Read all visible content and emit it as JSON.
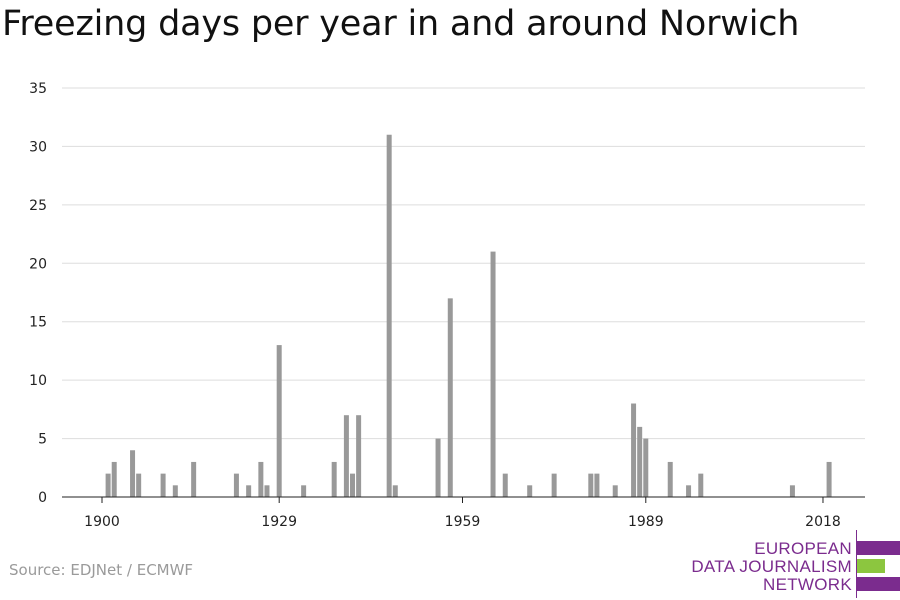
{
  "title": "Freezing days per year in and around Norwich",
  "source": "Source: EDJNet / ECMWF",
  "logo": {
    "lines": [
      "EUROPEAN",
      "DATA JOURNALISM",
      "NETWORK"
    ],
    "colors": {
      "purple": "#7b2c8e",
      "green": "#8cc63f"
    }
  },
  "colors": {
    "bar": "#999999",
    "grid": "#dddddd",
    "axis": "#222222"
  },
  "chart_data": {
    "type": "bar",
    "title": "Freezing days per year in and around Norwich",
    "xlabel": "",
    "ylabel": "",
    "ylim": [
      0,
      35
    ],
    "yticks": [
      0,
      5,
      10,
      15,
      20,
      25,
      30,
      35
    ],
    "xticks": [
      1900,
      1929,
      1959,
      1989,
      2018
    ],
    "grid": true,
    "x": [
      1901,
      1902,
      1905,
      1906,
      1910,
      1912,
      1915,
      1922,
      1924,
      1926,
      1927,
      1929,
      1933,
      1938,
      1940,
      1941,
      1942,
      1947,
      1948,
      1955,
      1957,
      1964,
      1966,
      1970,
      1974,
      1980,
      1981,
      1984,
      1987,
      1988,
      1989,
      1993,
      1996,
      1998,
      2013,
      2019
    ],
    "values": [
      2,
      3,
      4,
      2,
      2,
      1,
      3,
      2,
      1,
      3,
      1,
      13,
      1,
      3,
      7,
      2,
      7,
      31,
      1,
      5,
      17,
      21,
      2,
      1,
      2,
      2,
      2,
      1,
      8,
      6,
      5,
      3,
      1,
      2,
      1,
      3
    ]
  }
}
